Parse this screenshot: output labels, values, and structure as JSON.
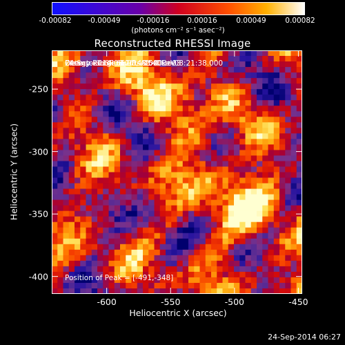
{
  "colorbar": {
    "ticks": [
      "-0.00082",
      "-0.00049",
      "-0.00016",
      "0.00016",
      "0.00049",
      "0.00082"
    ],
    "unit": "(photons cm⁻² s⁻¹ asec⁻²)",
    "colors": [
      "#1010ff",
      "#ff0000",
      "#ff8c00",
      "#ffffff"
    ]
  },
  "title": "Reconstructed RHESSI Image",
  "annotations": {
    "time": "24-Sep-2014 08:17:48.000 to 08:21:38.000",
    "detectors": "Detectors: 3F 6F 9F, Att 0",
    "energy": "Energy Range: 12.0 - 25.0 keV",
    "clean": "Clean     Total counts: 2.40E+03",
    "peak": "Position of Peak = [-491,-348]"
  },
  "axes": {
    "xlabel": "Heliocentric X (arcsec)",
    "ylabel": "Heliocentric Y (arcsec)",
    "xticks": [
      "-600",
      "-550",
      "-500",
      "-450"
    ],
    "yticks": [
      "-250",
      "-300",
      "-350",
      "-400"
    ],
    "xlim": [
      -643,
      -447
    ],
    "ylim": [
      -414,
      -219
    ]
  },
  "footer": {
    "stamp": "24-Sep-2014 06:27"
  }
}
